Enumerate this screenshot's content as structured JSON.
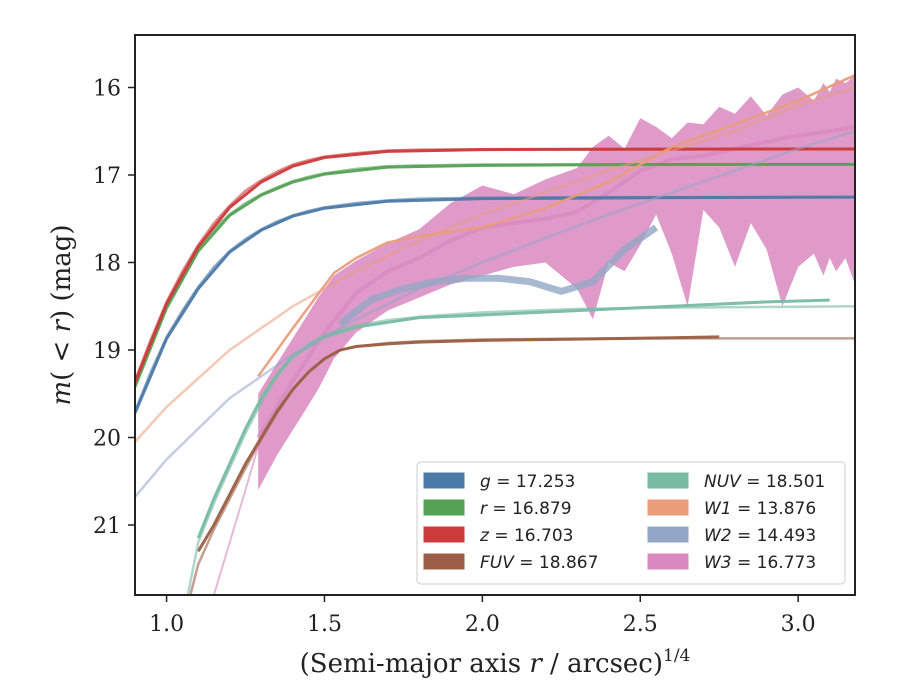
{
  "chart_data": {
    "type": "line",
    "title": "",
    "xlabel": "(Semi-major axis r / arcsec)",
    "xlabel_parts": [
      "(Semi-major axis ",
      "r",
      " / arcsec)",
      "1/4"
    ],
    "ylabel": "m(< r) (mag)",
    "ylabel_parts": [
      "m",
      "(",
      " < ",
      "r",
      ")",
      " (mag)"
    ],
    "xlim": [
      0.9,
      3.18
    ],
    "ylim": [
      21.8,
      15.4
    ],
    "y_inverted": true,
    "grid": false,
    "legend_placement": "lower-right",
    "legend_columns": 2,
    "x_ticks": [
      1.0,
      1.5,
      2.0,
      2.5,
      3.0
    ],
    "x_tick_labels": [
      "1.0",
      "1.5",
      "2.0",
      "2.5",
      "3.0"
    ],
    "y_ticks": [
      16,
      17,
      18,
      19,
      20,
      21
    ],
    "y_tick_labels": [
      "16",
      "17",
      "18",
      "19",
      "20",
      "21"
    ],
    "series": [
      {
        "name": "g = 17.253",
        "band": "g",
        "value": "17.253",
        "color": "#4c7aa8",
        "model_x": [
          0.9,
          0.95,
          1.0,
          1.05,
          1.1,
          1.15,
          1.2,
          1.25,
          1.3,
          1.35,
          1.4,
          1.45,
          1.5,
          1.6,
          1.7,
          1.8,
          2.0,
          2.3,
          2.6,
          3.0,
          3.18
        ],
        "model_y": [
          19.7,
          19.25,
          18.85,
          18.55,
          18.28,
          18.05,
          17.87,
          17.73,
          17.62,
          17.53,
          17.46,
          17.41,
          17.37,
          17.32,
          17.29,
          17.27,
          17.26,
          17.255,
          17.253,
          17.253,
          17.253
        ],
        "obs_x": [
          0.9,
          1.0,
          1.1,
          1.2,
          1.3,
          1.4,
          1.5,
          1.7,
          2.0,
          2.5,
          3.0,
          3.18
        ],
        "obs_y": [
          19.72,
          18.87,
          18.3,
          17.88,
          17.63,
          17.47,
          17.38,
          17.3,
          17.27,
          17.26,
          17.255,
          17.253
        ]
      },
      {
        "name": "r = 16.879",
        "band": "r",
        "value": "16.879",
        "color": "#55a255",
        "model_x": [
          0.9,
          0.95,
          1.0,
          1.05,
          1.1,
          1.15,
          1.2,
          1.25,
          1.3,
          1.35,
          1.4,
          1.45,
          1.5,
          1.6,
          1.7,
          1.8,
          2.0,
          2.3,
          2.6,
          3.0,
          3.18
        ],
        "model_y": [
          19.4,
          18.92,
          18.5,
          18.15,
          17.85,
          17.62,
          17.45,
          17.32,
          17.22,
          17.14,
          17.07,
          17.02,
          16.98,
          16.93,
          16.9,
          16.89,
          16.88,
          16.879,
          16.879,
          16.879,
          16.879
        ],
        "obs_x": [
          0.9,
          1.0,
          1.1,
          1.2,
          1.3,
          1.4,
          1.5,
          1.7,
          2.0,
          2.5,
          3.0,
          3.18
        ],
        "obs_y": [
          19.42,
          18.52,
          17.87,
          17.46,
          17.23,
          17.08,
          16.99,
          16.91,
          16.89,
          16.88,
          16.879,
          16.879
        ]
      },
      {
        "name": "z = 16.703",
        "band": "z",
        "value": "16.703",
        "color": "#cc3b3b",
        "model_x": [
          0.9,
          0.95,
          1.0,
          1.05,
          1.1,
          1.15,
          1.2,
          1.25,
          1.3,
          1.35,
          1.4,
          1.45,
          1.5,
          1.6,
          1.7,
          1.8,
          2.0,
          2.3,
          2.6,
          3.0,
          3.18
        ],
        "model_y": [
          19.35,
          18.88,
          18.45,
          18.1,
          17.8,
          17.55,
          17.35,
          17.18,
          17.06,
          16.96,
          16.88,
          16.83,
          16.79,
          16.75,
          16.72,
          16.71,
          16.705,
          16.703,
          16.703,
          16.703,
          16.703
        ],
        "obs_x": [
          0.9,
          1.0,
          1.1,
          1.2,
          1.3,
          1.4,
          1.5,
          1.7,
          2.0,
          2.5,
          3.0,
          3.18
        ],
        "obs_y": [
          19.37,
          18.47,
          17.82,
          17.37,
          17.08,
          16.9,
          16.8,
          16.73,
          16.71,
          16.705,
          16.703,
          16.703
        ]
      },
      {
        "name": "FUV = 18.867",
        "band": "FUV",
        "value": "18.867",
        "color": "#9c5f45",
        "model_x": [
          1.04,
          1.1,
          1.15,
          1.2,
          1.25,
          1.3,
          1.35,
          1.4,
          1.45,
          1.5,
          1.55,
          1.6,
          1.7,
          1.8,
          2.0,
          2.3,
          2.6,
          3.0,
          3.18
        ],
        "model_y": [
          22.3,
          21.45,
          21.05,
          20.7,
          20.35,
          20.02,
          19.72,
          19.45,
          19.25,
          19.1,
          19.0,
          18.96,
          18.92,
          18.9,
          18.88,
          18.87,
          18.867,
          18.867,
          18.867
        ],
        "obs_x": [
          1.1,
          1.15,
          1.2,
          1.25,
          1.3,
          1.35,
          1.4,
          1.45,
          1.5,
          1.55,
          1.6,
          1.7,
          1.8,
          2.0,
          2.3,
          2.6,
          2.75
        ],
        "obs_y": [
          21.3,
          21.0,
          20.65,
          20.3,
          20.0,
          19.7,
          19.45,
          19.25,
          19.1,
          19.0,
          18.96,
          18.93,
          18.91,
          18.89,
          18.875,
          18.86,
          18.85
        ]
      },
      {
        "name": "NUV = 18.501",
        "band": "NUV",
        "value": "18.501",
        "color": "#78bba3",
        "model_x": [
          1.04,
          1.1,
          1.15,
          1.2,
          1.25,
          1.3,
          1.35,
          1.4,
          1.45,
          1.5,
          1.55,
          1.6,
          1.7,
          1.8,
          2.0,
          2.3,
          2.6,
          3.0,
          3.18
        ],
        "model_y": [
          22.3,
          21.2,
          20.75,
          20.35,
          19.95,
          19.6,
          19.3,
          19.08,
          18.93,
          18.83,
          18.77,
          18.72,
          18.66,
          18.62,
          18.57,
          18.53,
          18.515,
          18.505,
          18.501
        ],
        "obs_x": [
          1.1,
          1.15,
          1.2,
          1.25,
          1.3,
          1.35,
          1.4,
          1.5,
          1.6,
          1.8,
          2.0,
          2.3,
          2.6,
          2.9,
          3.1
        ],
        "obs_y": [
          21.15,
          20.7,
          20.3,
          19.9,
          19.55,
          19.28,
          19.07,
          18.85,
          18.74,
          18.63,
          18.6,
          18.55,
          18.5,
          18.45,
          18.43
        ]
      },
      {
        "name": "W1 = 13.876",
        "band": "W1",
        "value": "13.876",
        "color": "#eb9c79",
        "model_x": [
          0.9,
          1.0,
          1.2,
          1.4,
          1.6,
          1.8,
          2.0,
          2.2,
          2.4,
          2.6,
          2.8,
          3.0,
          3.18
        ],
        "model_y": [
          20.05,
          19.65,
          19.0,
          18.5,
          18.1,
          17.75,
          17.45,
          17.2,
          16.95,
          16.72,
          16.5,
          16.2,
          16.0
        ],
        "obs_x": [
          1.29,
          1.4,
          1.53,
          1.6,
          1.7,
          1.8,
          2.0,
          2.2,
          2.4,
          2.6,
          2.8,
          3.0,
          3.18
        ],
        "obs_y": [
          19.3,
          18.75,
          18.12,
          17.95,
          17.77,
          17.7,
          17.6,
          17.38,
          17.08,
          16.68,
          16.42,
          16.15,
          15.86
        ]
      },
      {
        "name": "W2 = 14.493",
        "band": "W2",
        "value": "14.493",
        "color": "#94a6c6",
        "model_x": [
          0.9,
          1.0,
          1.2,
          1.4,
          1.6,
          1.8,
          2.0,
          2.2,
          2.4,
          2.6,
          2.8,
          3.0,
          3.18
        ],
        "model_y": [
          20.68,
          20.25,
          19.55,
          19.05,
          18.65,
          18.3,
          18.0,
          17.72,
          17.45,
          17.2,
          16.95,
          16.7,
          16.5
        ],
        "obs_x": [
          1.55,
          1.65,
          1.75,
          1.85,
          1.95,
          2.05,
          2.15,
          2.25,
          2.35,
          2.45,
          2.55
        ],
        "obs_y": [
          18.7,
          18.42,
          18.3,
          18.22,
          18.18,
          18.18,
          18.22,
          18.33,
          18.22,
          17.85,
          17.6
        ]
      },
      {
        "name": "W3 = 16.773",
        "band": "W3",
        "value": "16.773",
        "color": "#d988c0",
        "band_x": [
          1.29,
          1.35,
          1.42,
          1.48,
          1.53,
          1.6,
          1.7,
          1.8,
          1.9,
          2.0,
          2.1,
          2.2,
          2.3,
          2.35,
          2.4,
          2.45,
          2.5,
          2.55,
          2.6,
          2.65,
          2.7,
          2.75,
          2.8,
          2.85,
          2.9,
          2.95,
          3.0,
          3.05,
          3.08,
          3.1,
          3.12,
          3.15,
          3.18
        ],
        "band_hi": [
          19.5,
          19.15,
          18.75,
          18.4,
          18.15,
          17.98,
          17.78,
          17.62,
          17.32,
          17.12,
          17.22,
          17.05,
          16.92,
          16.68,
          16.55,
          16.7,
          16.35,
          16.45,
          16.58,
          16.4,
          16.42,
          16.22,
          16.3,
          16.1,
          16.32,
          16.08,
          16.0,
          16.15,
          15.95,
          16.05,
          15.9,
          15.95,
          15.86
        ],
        "band_lo": [
          20.6,
          20.2,
          19.8,
          19.45,
          19.1,
          18.8,
          18.55,
          18.4,
          18.25,
          18.15,
          18.05,
          18.0,
          18.3,
          18.65,
          18.0,
          18.1,
          17.8,
          17.45,
          17.9,
          18.5,
          17.4,
          17.6,
          18.05,
          17.55,
          17.85,
          18.5,
          18.05,
          17.9,
          18.15,
          17.95,
          18.1,
          17.95,
          18.25
        ],
        "mid_x": [
          1.29,
          1.4,
          1.5,
          1.6,
          1.7,
          1.8,
          1.9,
          2.0,
          2.1,
          2.2,
          2.3,
          2.4,
          2.5,
          2.6,
          2.7,
          2.8,
          2.9,
          3.0,
          3.1,
          3.18
        ],
        "mid_y": [
          20.0,
          19.35,
          18.8,
          18.35,
          18.1,
          17.95,
          17.75,
          17.6,
          17.55,
          17.5,
          17.42,
          17.2,
          16.95,
          16.82,
          16.78,
          16.7,
          16.62,
          16.55,
          16.5,
          16.45
        ]
      }
    ],
    "legend": [
      {
        "sym": "g",
        "italic": true,
        "value": "17.253",
        "color": "#4c7aa8"
      },
      {
        "sym": "r",
        "italic": true,
        "value": "16.879",
        "color": "#55a255"
      },
      {
        "sym": "z",
        "italic": true,
        "value": "16.703",
        "color": "#cc3b3b"
      },
      {
        "sym": "FUV",
        "italic": true,
        "value": "18.867",
        "color": "#9c5f45"
      },
      {
        "sym": "NUV",
        "italic": true,
        "value": "18.501",
        "color": "#78bba3"
      },
      {
        "sym": "W1",
        "italic": true,
        "value": "13.876",
        "color": "#eb9c79"
      },
      {
        "sym": "W2",
        "italic": true,
        "value": "14.493",
        "color": "#94a6c6"
      },
      {
        "sym": "W3",
        "italic": true,
        "value": "16.773",
        "color": "#d988c0"
      }
    ]
  }
}
